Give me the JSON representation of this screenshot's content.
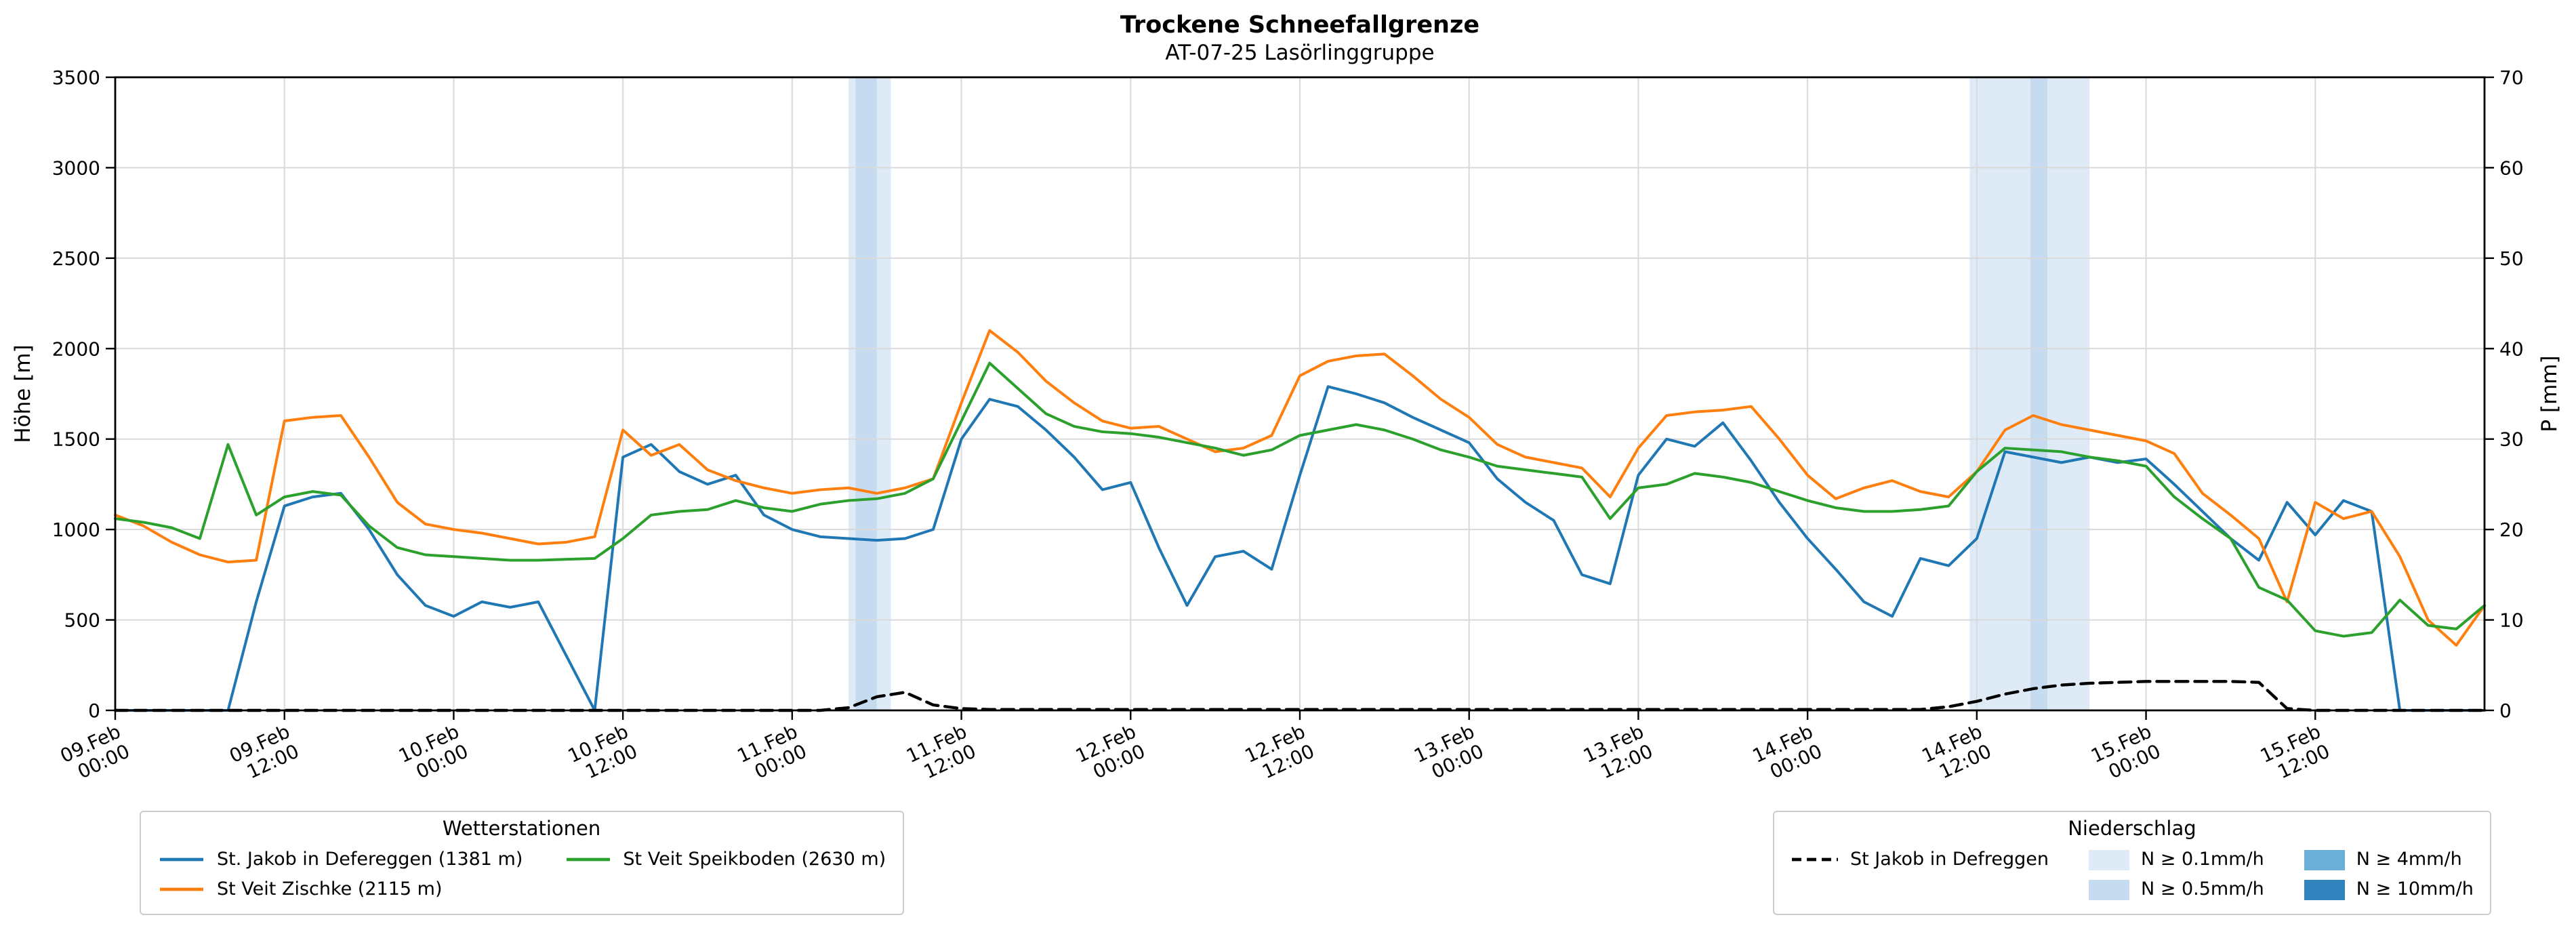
{
  "chart_data": {
    "type": "line",
    "title": "Trockene Schneefallgrenze",
    "subtitle": "AT-07-25 Lasörlinggruppe",
    "ylabel_left": "Höhe [m]",
    "ylabel_right": "P [mm]",
    "ylim_left": [
      0,
      3500
    ],
    "ylim_right": [
      0,
      70
    ],
    "yticks_left": [
      0,
      500,
      1000,
      1500,
      2000,
      2500,
      3000,
      3500
    ],
    "yticks_right": [
      0,
      10,
      20,
      30,
      40,
      50,
      60,
      70
    ],
    "x_range_hours": [
      0,
      168
    ],
    "x_origin": "09.Feb 00:00",
    "x_step_hours": 2,
    "grid": "on",
    "grid_color": "#d9d9d9",
    "xticks": [
      {
        "hour": 0,
        "date": "09.Feb",
        "time": "00:00"
      },
      {
        "hour": 12,
        "date": "09.Feb",
        "time": "12:00"
      },
      {
        "hour": 24,
        "date": "10.Feb",
        "time": "00:00"
      },
      {
        "hour": 36,
        "date": "10.Feb",
        "time": "12:00"
      },
      {
        "hour": 48,
        "date": "11.Feb",
        "time": "00:00"
      },
      {
        "hour": 60,
        "date": "11.Feb",
        "time": "12:00"
      },
      {
        "hour": 72,
        "date": "12.Feb",
        "time": "00:00"
      },
      {
        "hour": 84,
        "date": "12.Feb",
        "time": "12:00"
      },
      {
        "hour": 96,
        "date": "13.Feb",
        "time": "00:00"
      },
      {
        "hour": 108,
        "date": "13.Feb",
        "time": "12:00"
      },
      {
        "hour": 120,
        "date": "14.Feb",
        "time": "00:00"
      },
      {
        "hour": 132,
        "date": "14.Feb",
        "time": "12:00"
      },
      {
        "hour": 144,
        "date": "15.Feb",
        "time": "00:00"
      },
      {
        "hour": 156,
        "date": "15.Feb",
        "time": "12:00"
      }
    ],
    "series": [
      {
        "id": "st-jakob-defereggen",
        "name": "St. Jakob in Defereggen (1381 m)",
        "axis": "left",
        "color": "#1f77b4",
        "style": "solid",
        "values": [
          0,
          0,
          0,
          0,
          0,
          600,
          1130,
          1180,
          1200,
          1000,
          750,
          580,
          520,
          600,
          570,
          600,
          300,
          0,
          1400,
          1470,
          1320,
          1250,
          1300,
          1080,
          1000,
          960,
          950,
          940,
          950,
          1000,
          1500,
          1720,
          1680,
          1550,
          1400,
          1220,
          1260,
          900,
          580,
          850,
          880,
          780,
          1300,
          1790,
          1750,
          1700,
          1620,
          1550,
          1480,
          1280,
          1150,
          1050,
          750,
          700,
          1300,
          1500,
          1460,
          1590,
          1380,
          1150,
          950,
          780,
          600,
          520,
          840,
          800,
          950,
          1430,
          1400,
          1370,
          1400,
          1370,
          1390,
          1250,
          1100,
          950,
          830,
          1150,
          970,
          1160,
          1100,
          0,
          0,
          0,
          0
        ]
      },
      {
        "id": "st-veit-zischke",
        "name": "St Veit Zischke (2115 m)",
        "axis": "left",
        "color": "#ff7f0e",
        "style": "solid",
        "values": [
          1080,
          1020,
          930,
          860,
          820,
          830,
          1600,
          1620,
          1630,
          1400,
          1150,
          1030,
          1000,
          980,
          950,
          920,
          930,
          960,
          1550,
          1410,
          1470,
          1330,
          1270,
          1230,
          1200,
          1220,
          1230,
          1200,
          1230,
          1280,
          1700,
          2100,
          1980,
          1820,
          1700,
          1600,
          1560,
          1570,
          1500,
          1430,
          1450,
          1520,
          1850,
          1930,
          1960,
          1970,
          1850,
          1720,
          1620,
          1470,
          1400,
          1370,
          1340,
          1180,
          1450,
          1630,
          1650,
          1660,
          1680,
          1500,
          1300,
          1170,
          1230,
          1270,
          1210,
          1180,
          1320,
          1550,
          1630,
          1580,
          1550,
          1520,
          1490,
          1420,
          1200,
          1080,
          950,
          600,
          1150,
          1060,
          1100,
          850,
          500,
          360,
          580
        ]
      },
      {
        "id": "st-veit-speikboden",
        "name": "St Veit Speikboden (2630 m)",
        "axis": "left",
        "color": "#2ca02c",
        "style": "solid",
        "values": [
          1060,
          1040,
          1010,
          950,
          1470,
          1080,
          1180,
          1210,
          1190,
          1020,
          900,
          860,
          850,
          840,
          830,
          830,
          835,
          840,
          950,
          1080,
          1100,
          1110,
          1160,
          1120,
          1100,
          1140,
          1160,
          1170,
          1200,
          1280,
          1600,
          1920,
          1780,
          1640,
          1570,
          1540,
          1530,
          1510,
          1480,
          1450,
          1410,
          1440,
          1520,
          1550,
          1580,
          1550,
          1500,
          1440,
          1400,
          1350,
          1330,
          1310,
          1290,
          1060,
          1230,
          1250,
          1310,
          1290,
          1260,
          1210,
          1160,
          1120,
          1100,
          1100,
          1110,
          1130,
          1320,
          1450,
          1440,
          1430,
          1400,
          1380,
          1350,
          1180,
          1060,
          950,
          680,
          610,
          440,
          410,
          430,
          610,
          470,
          450,
          580
        ]
      },
      {
        "id": "precip-st-jakob",
        "name": "St Jakob in Defreggen",
        "axis": "right",
        "color": "#000000",
        "style": "dashed",
        "values": [
          0,
          0,
          0,
          0,
          0,
          0,
          0,
          0,
          0,
          0,
          0,
          0,
          0,
          0,
          0,
          0,
          0,
          0,
          0,
          0,
          0,
          0,
          0,
          0,
          0,
          0,
          0.3,
          1.5,
          2,
          0.6,
          0.2,
          0.1,
          0.1,
          0.1,
          0.1,
          0.1,
          0.1,
          0.1,
          0.1,
          0.1,
          0.1,
          0.1,
          0.1,
          0.1,
          0.1,
          0.1,
          0.1,
          0.1,
          0.1,
          0.1,
          0.1,
          0.1,
          0.1,
          0.1,
          0.1,
          0.1,
          0.1,
          0.1,
          0.1,
          0.1,
          0.1,
          0.1,
          0.1,
          0.1,
          0.1,
          0.4,
          1,
          1.8,
          2.4,
          2.8,
          3,
          3.1,
          3.2,
          3.2,
          3.2,
          3.2,
          3.1,
          0.2,
          0,
          0,
          0,
          0,
          0,
          0,
          0
        ]
      }
    ],
    "precip_bands": [
      {
        "start": 52,
        "end": 55,
        "level": "0.1"
      },
      {
        "start": 52.5,
        "end": 54,
        "level": "0.5"
      },
      {
        "start": 131.5,
        "end": 140,
        "level": "0.1"
      },
      {
        "start": 135.8,
        "end": 137,
        "level": "0.5"
      }
    ],
    "band_colors": {
      "0.1": "#deebf7",
      "0.5": "#c6dbef",
      "4": "#6baed6",
      "10": "#3182bd"
    }
  },
  "legend_left": {
    "title": "Wetterstationen",
    "items": [
      {
        "label": "St. Jakob in Defereggen (1381 m)",
        "color": "#1f77b4"
      },
      {
        "label": "St Veit Zischke (2115 m)",
        "color": "#ff7f0e"
      },
      {
        "label": "St Veit Speikboden (2630 m)",
        "color": "#2ca02c"
      }
    ]
  },
  "legend_right": {
    "title": "Niederschlag",
    "line_item": {
      "label": "St Jakob in Defreggen",
      "color": "#000000",
      "style": "dashed"
    },
    "patch_items": [
      {
        "label": "N ≥ 0.1mm/h",
        "color": "#deebf7"
      },
      {
        "label": "N ≥ 0.5mm/h",
        "color": "#c6dbef"
      },
      {
        "label": "N ≥ 4mm/h",
        "color": "#6baed6"
      },
      {
        "label": "N ≥ 10mm/h",
        "color": "#3182bd"
      }
    ]
  }
}
